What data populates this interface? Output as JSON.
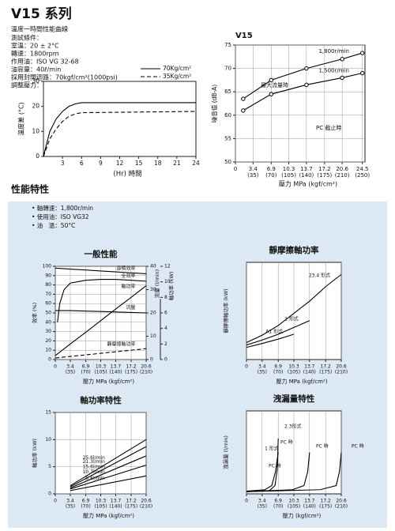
{
  "header": {
    "title": "V15 系列",
    "lines": [
      "溫度一時間性能曲線",
      "測試條件：",
      "室溫：20 ± 2°C",
      "轉速：1800rpm",
      "作用油：ISO VG 32-68",
      "油容量：40ℓ/min",
      "採用封閉迴路：70kgf/cm²(1000psi)",
      "調整壓力：.....35kgf/cm²(500psi)"
    ]
  },
  "section_title": "性能特性",
  "conditions": [
    "• 軸轉速：1,800r/min",
    "• 使用油：ISO VG32",
    "• 油　溫：50°C"
  ],
  "chart_data": [
    {
      "type": "line",
      "ylabel": "溫度差 (°C)",
      "xlabel": "(Hr) 時間",
      "xlim": [
        0,
        24
      ],
      "ylim": [
        0,
        30
      ],
      "xticks": [
        3,
        6,
        9,
        12,
        15,
        18,
        21,
        24
      ],
      "yticks": [
        0,
        10,
        20,
        30
      ],
      "grid": false,
      "legend": "top-right",
      "series": [
        {
          "name": "70Kg/cm²",
          "color": "#000000",
          "line_style": "solid",
          "x": [
            0,
            1,
            2,
            3,
            4,
            5,
            6,
            24
          ],
          "values": [
            0,
            10,
            15,
            18,
            20,
            21,
            21.5,
            21.5
          ]
        },
        {
          "name": "35Kg/cm²",
          "color": "#000000",
          "line_style": "dashed",
          "x": [
            0,
            1,
            2,
            3,
            4,
            5,
            6,
            24
          ],
          "values": [
            0,
            7,
            11,
            14,
            16,
            17,
            17.5,
            18
          ]
        }
      ]
    },
    {
      "type": "line",
      "title": "V15",
      "ylabel": "噪音值 (dB-A)",
      "xlabel": "壓力 MPa (kgf/cm²)",
      "xlim": [
        0,
        25
      ],
      "ylim": [
        50,
        75
      ],
      "xticks": [
        0,
        {
          "value": 3.4,
          "label": "3.4",
          "label2": "(35)"
        },
        {
          "value": 6.9,
          "label": "6.9",
          "label2": "(70)"
        },
        {
          "value": 10.3,
          "label": "10.3",
          "label2": "(105)"
        },
        {
          "value": 13.7,
          "label": "13.7",
          "label2": "(140)"
        },
        {
          "value": 17.2,
          "label": "17.2",
          "label2": "(175)"
        },
        {
          "value": 20.6,
          "label": "20.6",
          "label2": "(210)"
        },
        {
          "value": 24.5,
          "label": "24.5",
          "label2": "(250)"
        }
      ],
      "yticks": [
        50,
        55,
        60,
        65,
        70,
        75
      ],
      "grid": true,
      "series": [
        {
          "name": "1,800r/min",
          "color": "#000000",
          "line_style": "solid",
          "x": [
            1.5,
            6.9,
            13.7,
            20.6,
            24.5
          ],
          "values": [
            63.5,
            67.5,
            70,
            72,
            73.3
          ]
        },
        {
          "name": "1,500r/min",
          "color": "#000000",
          "line_style": "solid",
          "x": [
            1.5,
            6.9,
            13.7,
            20.6,
            24.5
          ],
          "values": [
            61,
            64.5,
            66.5,
            68,
            69
          ]
        }
      ],
      "annotations": [
        "最大流量時",
        "PC 截止時"
      ]
    },
    {
      "type": "line",
      "title": "一般性能",
      "ylabel": "效率 (%)",
      "y2label": "流量 (l/min)",
      "y3label": "軸功率 (kW)",
      "xlabel": "壓力 MPa (kgf/cm²)",
      "xlim": [
        0,
        20.6
      ],
      "ylim": [
        0,
        100
      ],
      "y2lim": [
        0,
        40
      ],
      "y3lim": [
        0,
        12
      ],
      "xticks": [
        0,
        {
          "value": 3.4,
          "label": "3.4",
          "label2": "(35)"
        },
        {
          "value": 6.9,
          "label": "6.9",
          "label2": "(70)"
        },
        {
          "value": 10.3,
          "label": "10.3",
          "label2": "(105)"
        },
        {
          "value": 13.7,
          "label": "13.7",
          "label2": "(140)"
        },
        {
          "value": 17.2,
          "label": "17.2",
          "label2": "(175)"
        },
        {
          "value": 20.6,
          "label": "20.6",
          "label2": "(210)"
        }
      ],
      "yticks": [
        0,
        10,
        20,
        30,
        40,
        50,
        60,
        70,
        80,
        90,
        100
      ],
      "y2ticks": [
        0,
        10,
        20,
        30,
        40
      ],
      "y3ticks": [
        0,
        2,
        4,
        6,
        8,
        10,
        12
      ],
      "grid": true,
      "series": [
        {
          "name": "容積效率",
          "color": "#000000",
          "line_style": "solid",
          "x": [
            0,
            3.4,
            6.9,
            10.3,
            13.7,
            17.2,
            20.6
          ],
          "values": [
            98,
            97,
            96,
            95,
            94,
            93,
            92
          ]
        },
        {
          "name": "全效率",
          "color": "#000000",
          "line_style": "solid",
          "x": [
            0.5,
            1,
            2,
            3.4,
            6.9,
            10.3,
            13.7,
            17.2,
            20.6
          ],
          "values": [
            40,
            60,
            75,
            82,
            85,
            86,
            86,
            85,
            84
          ]
        },
        {
          "name": "流量",
          "color": "#000000",
          "line_style": "solid",
          "axis": "y2",
          "x": [
            0,
            3.4,
            6.9,
            10.3,
            13.7,
            17.2,
            20.6
          ],
          "values": [
            21,
            21,
            20.8,
            20.6,
            20.4,
            20.2,
            20
          ]
        },
        {
          "name": "軸功率",
          "color": "#000000",
          "line_style": "solid",
          "axis": "y3",
          "x": [
            0,
            3.4,
            6.9,
            10.3,
            13.7,
            17.2,
            20.6
          ],
          "values": [
            0.5,
            2,
            3.5,
            5,
            6.5,
            8,
            9.5
          ]
        },
        {
          "name": "靜摩擦軸功率",
          "color": "#000000",
          "line_style": "dashed",
          "axis": "y3",
          "x": [
            0,
            3.4,
            6.9,
            10.3,
            13.7,
            17.2,
            20.6
          ],
          "values": [
            0.2,
            0.4,
            0.6,
            0.8,
            1,
            1.2,
            1.4
          ]
        }
      ]
    },
    {
      "type": "line",
      "title": "靜摩擦軸功率",
      "ylabel": "靜摩擦軸功率 (kW)",
      "xlabel": "壓力 MPa (kgf/cm²)",
      "xlim": [
        0,
        20.6
      ],
      "ylim": [
        0,
        2
      ],
      "xticks": [
        0,
        {
          "value": 3.4,
          "label": "3.4",
          "label2": "(35)"
        },
        {
          "value": 6.9,
          "label": "6.9",
          "label2": "(70)"
        },
        {
          "value": 10.3,
          "label": "10.3",
          "label2": "(105)"
        },
        {
          "value": 13.7,
          "label": "13.7",
          "label2": "(140)"
        },
        {
          "value": 17.2,
          "label": "17.2",
          "label2": "(175)"
        },
        {
          "value": 20.6,
          "label": "20.6",
          "label2": "(210)"
        }
      ],
      "yticks": [],
      "grid": true,
      "series": [
        {
          "name": "23.4 形式",
          "color": "#000000",
          "line_style": "solid",
          "x": [
            0,
            3.4,
            6.9,
            10.3,
            13.7,
            17.2,
            20.6
          ],
          "values": [
            0.35,
            0.5,
            0.7,
            0.95,
            1.2,
            1.5,
            1.75
          ]
        },
        {
          "name": "1 形式",
          "color": "#000000",
          "line_style": "solid",
          "x": [
            0,
            3.4,
            6.9,
            10.3,
            13.7
          ],
          "values": [
            0.3,
            0.4,
            0.52,
            0.66,
            0.8
          ]
        },
        {
          "name": "A1 形式",
          "color": "#000000",
          "line_style": "solid",
          "x": [
            0,
            3.4,
            6.9,
            10.3
          ],
          "values": [
            0.25,
            0.33,
            0.42,
            0.52
          ]
        }
      ]
    },
    {
      "type": "line",
      "title": "軸功率特性",
      "ylabel": "軸功率 (kW)",
      "xlabel": "壓力 MPa (kgf/cm²)",
      "xlim": [
        0,
        20.6
      ],
      "ylim": [
        0,
        15
      ],
      "xticks": [
        0,
        {
          "value": 3.4,
          "label": "3.4",
          "label2": "(35)"
        },
        {
          "value": 6.9,
          "label": "6.9",
          "label2": "(70)"
        },
        {
          "value": 10.3,
          "label": "10.3",
          "label2": "(105)"
        },
        {
          "value": 13.7,
          "label": "13.7",
          "label2": "(140)"
        },
        {
          "value": 17.2,
          "label": "17.2",
          "label2": "(175)"
        },
        {
          "value": 20.6,
          "label": "20.6",
          "label2": "(210)"
        }
      ],
      "yticks": [
        0,
        5,
        10,
        15
      ],
      "grid": true,
      "series": [
        {
          "name": "25.6l/min",
          "color": "#000000",
          "line_style": "solid",
          "x": [
            3.4,
            20.6
          ],
          "values": [
            1.5,
            10
          ]
        },
        {
          "name": "21.3l/min",
          "color": "#000000",
          "line_style": "solid",
          "x": [
            3.4,
            20.6
          ],
          "values": [
            1.3,
            8.7
          ]
        },
        {
          "name": "15.6l/min",
          "color": "#000000",
          "line_style": "solid",
          "x": [
            3.4,
            20.6
          ],
          "values": [
            1.1,
            7
          ]
        },
        {
          "name": "10.7l/min",
          "color": "#000000",
          "line_style": "solid",
          "x": [
            3.4,
            20.6
          ],
          "values": [
            0.9,
            5.3
          ]
        },
        {
          "name": "5.6l/min",
          "color": "#000000",
          "line_style": "solid",
          "x": [
            3.4,
            20.6
          ],
          "values": [
            0.6,
            3.3
          ]
        }
      ]
    },
    {
      "type": "line",
      "title": "洩漏量特性",
      "ylabel": "洩漏量 (l/min)",
      "xlabel": "壓力 (kgf/cm²)",
      "xlim": [
        0,
        20.6
      ],
      "ylim": [
        0,
        3
      ],
      "xticks": [
        0,
        {
          "value": 3.4,
          "label": "3.4",
          "label2": "(35)"
        },
        {
          "value": 6.9,
          "label": "6.9",
          "label2": "(70)"
        },
        {
          "value": 10.3,
          "label": "10.3",
          "label2": "(105)"
        },
        {
          "value": 13.7,
          "label": "13.7",
          "label2": "(140)"
        },
        {
          "value": 17.2,
          "label": "17.2",
          "label2": "(175)"
        },
        {
          "value": 20.6,
          "label": "20.6",
          "label2": "(210)"
        }
      ],
      "yticks": [],
      "grid": true,
      "series": [
        {
          "color": "#000000",
          "line_style": "solid",
          "x": [
            0,
            4,
            5.5,
            6.3,
            6.9
          ],
          "values": [
            0.1,
            0.15,
            0.3,
            0.8,
            1.5
          ]
        },
        {
          "color": "#000000",
          "line_style": "solid",
          "x": [
            0,
            5,
            6.2,
            6.7,
            6.9
          ],
          "values": [
            0.08,
            0.12,
            0.3,
            0.9,
            2
          ]
        },
        {
          "color": "#000000",
          "line_style": "solid",
          "x": [
            0,
            10,
            12.5,
            13.3,
            13.7
          ],
          "values": [
            0.08,
            0.15,
            0.3,
            0.8,
            1.5
          ]
        },
        {
          "color": "#000000",
          "line_style": "solid",
          "x": [
            0,
            16,
            19.5,
            20.2,
            20.6
          ],
          "values": [
            0.08,
            0.15,
            0.3,
            0.8,
            1.5
          ]
        }
      ],
      "annotations": [
        "2.3形式",
        "1 形式",
        "PC 時",
        "PC 時",
        "PC 時",
        "PC 時"
      ]
    }
  ]
}
